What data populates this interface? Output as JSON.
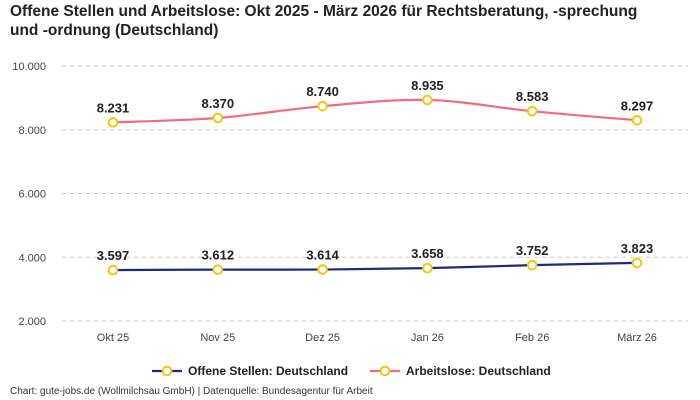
{
  "chart_data": {
    "type": "line",
    "title": "Offene Stellen und Arbeitslose: Okt 2025 - März 2026 für Rechtsberatung, -sprechung und -ordnung (Deutschland)",
    "categories": [
      "Okt 25",
      "Nov 25",
      "Dez 25",
      "Jan 26",
      "Feb 26",
      "März 26"
    ],
    "ylim": [
      2000,
      10000
    ],
    "yticks": [
      2000,
      4000,
      6000,
      8000,
      10000
    ],
    "ytick_labels": [
      "2.000",
      "4.000",
      "6.000",
      "8.000",
      "10.000"
    ],
    "grid": true,
    "legend_position": "bottom",
    "series": [
      {
        "name": "Offene Stellen: Deutschland",
        "color": "#1f2a7a",
        "values": [
          3597,
          3612,
          3614,
          3658,
          3752,
          3823
        ],
        "labels": [
          "3.597",
          "3.612",
          "3.614",
          "3.658",
          "3.752",
          "3.823"
        ]
      },
      {
        "name": "Arbeitslose: Deutschland",
        "color": "#f06a80",
        "values": [
          8231,
          8370,
          8740,
          8935,
          8583,
          8297
        ],
        "labels": [
          "8.231",
          "8.370",
          "8.740",
          "8.935",
          "8.583",
          "8.297"
        ]
      }
    ],
    "marker_color": "#f5c518"
  },
  "footer": "Chart: gute-jobs.de (Wollmilchsau GmbH) | Datenquelle: Bundesagentur für Arbeit"
}
